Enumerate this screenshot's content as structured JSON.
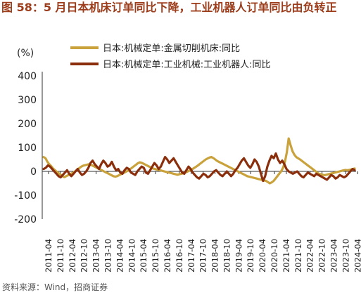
{
  "header": {
    "title_prefix": "图 58：",
    "title_text": "5 月日本机床订单同比下降，工业机器人订单同比由负转正"
  },
  "source": "资料来源：Wind，招商证券",
  "colors": {
    "title": "#9c3c1a",
    "series_1": "#c9a23c",
    "series_2": "#8b2e0c"
  },
  "chart_data": {
    "type": "line",
    "ylabel": "(%)",
    "ylim": [
      -200,
      400
    ],
    "yticks": [
      -200,
      -100,
      0,
      100,
      200,
      300,
      400
    ],
    "xticks": [
      "2011-04",
      "2011-10",
      "2012-04",
      "2012-10",
      "2013-04",
      "2013-10",
      "2014-04",
      "2014-10",
      "2015-04",
      "2015-10",
      "2016-04",
      "2016-10",
      "2017-04",
      "2017-10",
      "2018-04",
      "2018-10",
      "2019-04",
      "2019-10",
      "2020-04",
      "2020-10",
      "2021-04",
      "2021-10",
      "2022-04",
      "2022-10",
      "2023-04",
      "2023-10",
      "2024-04"
    ],
    "legend_position": "top",
    "series": [
      {
        "name": "日本:机械定单:金属切削机床:同比",
        "values": [
          60,
          55,
          40,
          30,
          22,
          12,
          5,
          -2,
          -8,
          -14,
          -20,
          -24,
          -20,
          -16,
          -12,
          -8,
          -4,
          2,
          8,
          14,
          20,
          24,
          26,
          28,
          30,
          27,
          24,
          20,
          16,
          12,
          8,
          4,
          0,
          -4,
          -8,
          -12,
          -16,
          -20,
          -22,
          -20,
          -16,
          -12,
          -8,
          -4,
          0,
          4,
          10,
          16,
          22,
          28,
          34,
          38,
          36,
          32,
          28,
          24,
          20,
          16,
          12,
          10,
          8,
          6,
          4,
          2,
          0,
          -2,
          -4,
          -6,
          -8,
          -10,
          -12,
          -14,
          -12,
          -10,
          -8,
          -5,
          -2,
          2,
          6,
          10,
          15,
          20,
          26,
          32,
          38,
          44,
          50,
          54,
          58,
          60,
          56,
          50,
          44,
          40,
          36,
          32,
          28,
          24,
          20,
          16,
          12,
          8,
          4,
          0,
          -4,
          -8,
          -12,
          -16,
          -20,
          -22,
          -24,
          -26,
          -28,
          -30,
          -32,
          -34,
          -36,
          -38,
          -40,
          -45,
          -50,
          -46,
          -40,
          -30,
          -20,
          -10,
          0,
          15,
          40,
          80,
          138,
          110,
          85,
          70,
          60,
          55,
          50,
          44,
          38,
          32,
          26,
          20,
          14,
          8,
          2,
          -4,
          -10,
          -12,
          -14,
          -16,
          -14,
          -12,
          -10,
          -8,
          -6,
          -4,
          -2,
          0,
          2,
          4,
          6,
          5,
          6,
          8,
          10,
          12
        ]
      },
      {
        "name": "日本:机械定单:工业机械:工业机器人:同比",
        "values": [
          10,
          15,
          25,
          20,
          10,
          0,
          -10,
          -20,
          -25,
          -15,
          -5,
          5,
          -10,
          -20,
          -10,
          0,
          10,
          -5,
          -15,
          -10,
          0,
          15,
          35,
          45,
          30,
          20,
          10,
          30,
          45,
          35,
          20,
          25,
          40,
          20,
          5,
          10,
          -5,
          -10,
          5,
          15,
          10,
          -5,
          -10,
          -15,
          0,
          10,
          20,
          15,
          -5,
          -10,
          5,
          20,
          35,
          25,
          10,
          20,
          40,
          60,
          50,
          35,
          45,
          55,
          40,
          25,
          10,
          -5,
          -10,
          5,
          20,
          10,
          -5,
          -15,
          -25,
          -30,
          -20,
          -10,
          -15,
          -25,
          -20,
          -10,
          0,
          5,
          -5,
          -15,
          -20,
          -10,
          0,
          -10,
          -20,
          -10,
          5,
          15,
          30,
          45,
          55,
          40,
          25,
          15,
          30,
          50,
          40,
          20,
          -10,
          -40,
          -20,
          20,
          45,
          65,
          55,
          75,
          50,
          35,
          45,
          30,
          10,
          0,
          -5,
          -10,
          -5,
          0,
          -10,
          -20,
          -25,
          -15,
          -5,
          -10,
          -15,
          -20,
          -10,
          -15,
          -20,
          -25,
          -30,
          -35,
          -25,
          -15,
          -20,
          -30,
          -25,
          -15,
          -20,
          -25,
          -20,
          -10,
          0,
          10,
          5
        ]
      }
    ]
  }
}
